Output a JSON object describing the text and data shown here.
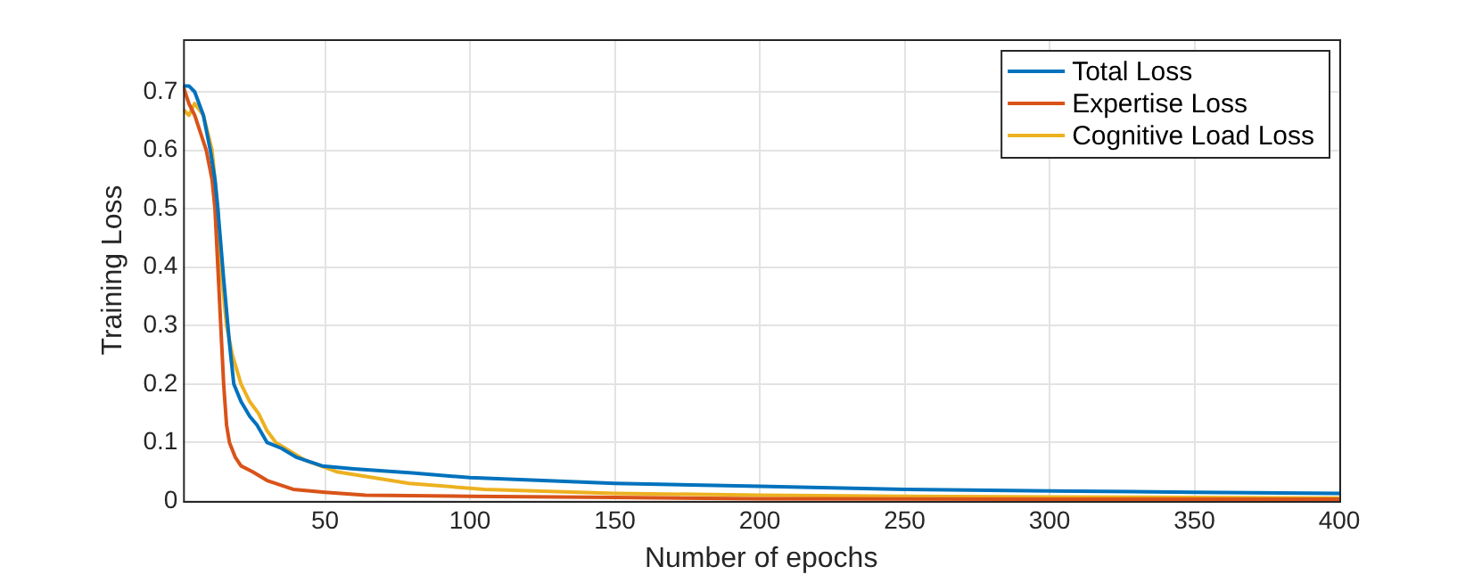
{
  "chart_data": {
    "type": "line",
    "xlabel": "Number of epochs",
    "ylabel": "Training Loss",
    "xlim": [
      1,
      400
    ],
    "xticks": [
      50,
      100,
      150,
      200,
      250,
      300,
      350,
      400
    ],
    "ylim": [
      0,
      0.79
    ],
    "yticks": [
      0,
      0.1,
      0.2,
      0.3,
      0.4,
      0.5,
      0.6,
      0.7
    ],
    "grid": true,
    "legend": "top right",
    "marker": "none",
    "line_style": "solid",
    "series": [
      {
        "name": "Total Loss",
        "color": "#0072bd",
        "x": [
          1,
          3,
          5,
          8,
          10.4,
          12,
          13,
          15,
          17,
          18.5,
          21,
          24,
          26.5,
          30,
          35,
          40,
          49,
          60,
          80,
          100,
          150,
          200,
          250,
          300,
          350,
          400
        ],
        "values": [
          0.71,
          0.71,
          0.7,
          0.66,
          0.6,
          0.55,
          0.5,
          0.38,
          0.27,
          0.2,
          0.17,
          0.145,
          0.13,
          0.1,
          0.09,
          0.075,
          0.06,
          0.055,
          0.048,
          0.04,
          0.03,
          0.025,
          0.02,
          0.017,
          0.015,
          0.013
        ]
      },
      {
        "name": "Expertise Loss",
        "color": "#d95319",
        "x": [
          1,
          3,
          5,
          7,
          9,
          11,
          12,
          13,
          14,
          15,
          16,
          17,
          19,
          21,
          25,
          30,
          39,
          50,
          64,
          100,
          150,
          200,
          300,
          400
        ],
        "values": [
          0.71,
          0.68,
          0.66,
          0.63,
          0.6,
          0.55,
          0.5,
          0.4,
          0.3,
          0.2,
          0.13,
          0.1,
          0.075,
          0.06,
          0.05,
          0.035,
          0.02,
          0.015,
          0.01,
          0.008,
          0.006,
          0.004,
          0.003,
          0.003
        ]
      },
      {
        "name": "Cognitive Load Loss",
        "color": "#edb120",
        "x": [
          1,
          3,
          5,
          8,
          11,
          12,
          13,
          14,
          16,
          18,
          21,
          24,
          27,
          30,
          33,
          38,
          43,
          54,
          79,
          105,
          150,
          200,
          250,
          300,
          400
        ],
        "values": [
          0.67,
          0.66,
          0.68,
          0.66,
          0.6,
          0.55,
          0.5,
          0.4,
          0.3,
          0.25,
          0.2,
          0.17,
          0.15,
          0.12,
          0.1,
          0.085,
          0.07,
          0.05,
          0.03,
          0.02,
          0.013,
          0.01,
          0.008,
          0.007,
          0.005
        ]
      }
    ]
  }
}
